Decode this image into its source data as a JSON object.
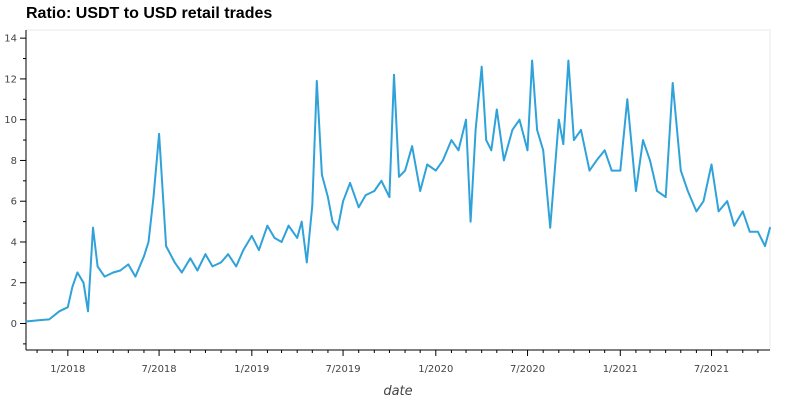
{
  "chart_data": {
    "type": "line",
    "title": "Ratio: USDT to USD retail trades",
    "xlabel": "date",
    "ylabel": "",
    "xlim": [
      "2017-10-10",
      "2021-10-25"
    ],
    "ylim": [
      -1.3,
      14.4
    ],
    "y_ticks": [
      0,
      2,
      4,
      6,
      8,
      10,
      12,
      14
    ],
    "x_ticks": [
      {
        "date": "2018-01-01",
        "label": "1/2018"
      },
      {
        "date": "2018-07-01",
        "label": "7/2018"
      },
      {
        "date": "2019-01-01",
        "label": "1/2019"
      },
      {
        "date": "2019-07-01",
        "label": "7/2019"
      },
      {
        "date": "2020-01-01",
        "label": "1/2020"
      },
      {
        "date": "2020-07-01",
        "label": "7/2020"
      },
      {
        "date": "2021-01-01",
        "label": "1/2021"
      },
      {
        "date": "2021-07-01",
        "label": "7/2021"
      }
    ],
    "grid": false,
    "series": [
      {
        "color": "#30a2da",
        "x": [
          "2017-10-10",
          "2017-11-01",
          "2017-11-25",
          "2017-12-15",
          "2018-01-01",
          "2018-01-10",
          "2018-01-20",
          "2018-02-01",
          "2018-02-10",
          "2018-02-20",
          "2018-03-01",
          "2018-03-15",
          "2018-04-01",
          "2018-04-15",
          "2018-05-01",
          "2018-05-15",
          "2018-06-01",
          "2018-06-10",
          "2018-06-20",
          "2018-07-01",
          "2018-07-15",
          "2018-08-01",
          "2018-08-15",
          "2018-09-01",
          "2018-09-15",
          "2018-10-01",
          "2018-10-15",
          "2018-11-01",
          "2018-11-15",
          "2018-12-01",
          "2018-12-15",
          "2019-01-01",
          "2019-01-15",
          "2019-02-01",
          "2019-02-15",
          "2019-03-01",
          "2019-03-15",
          "2019-04-01",
          "2019-04-10",
          "2019-04-20",
          "2019-05-01",
          "2019-05-10",
          "2019-05-20",
          "2019-06-01",
          "2019-06-10",
          "2019-06-20",
          "2019-07-01",
          "2019-07-15",
          "2019-08-01",
          "2019-08-15",
          "2019-09-01",
          "2019-09-15",
          "2019-10-01",
          "2019-10-10",
          "2019-10-20",
          "2019-11-01",
          "2019-11-15",
          "2019-12-01",
          "2019-12-15",
          "2020-01-01",
          "2020-01-15",
          "2020-02-01",
          "2020-02-15",
          "2020-03-01",
          "2020-03-10",
          "2020-03-20",
          "2020-04-01",
          "2020-04-10",
          "2020-04-20",
          "2020-05-01",
          "2020-05-15",
          "2020-06-01",
          "2020-06-15",
          "2020-07-01",
          "2020-07-10",
          "2020-07-20",
          "2020-08-01",
          "2020-08-15",
          "2020-09-01",
          "2020-09-10",
          "2020-09-20",
          "2020-10-01",
          "2020-10-15",
          "2020-11-01",
          "2020-11-15",
          "2020-12-01",
          "2020-12-15",
          "2021-01-01",
          "2021-01-15",
          "2021-02-01",
          "2021-02-15",
          "2021-03-01",
          "2021-03-15",
          "2021-04-01",
          "2021-04-15",
          "2021-05-01",
          "2021-05-15",
          "2021-06-01",
          "2021-06-15",
          "2021-07-01",
          "2021-07-15",
          "2021-08-01",
          "2021-08-15",
          "2021-09-01",
          "2021-09-15",
          "2021-10-01",
          "2021-10-15",
          "2021-10-25"
        ],
        "values": [
          0.1,
          0.15,
          0.2,
          0.6,
          0.8,
          1.8,
          2.5,
          2.0,
          0.6,
          4.7,
          2.8,
          2.3,
          2.5,
          2.6,
          2.9,
          2.3,
          3.3,
          4.0,
          6.2,
          9.3,
          3.8,
          3.0,
          2.5,
          3.2,
          2.6,
          3.4,
          2.8,
          3.0,
          3.4,
          2.8,
          3.6,
          4.3,
          3.6,
          4.8,
          4.2,
          4.0,
          4.8,
          4.2,
          5.0,
          3.0,
          5.8,
          11.9,
          7.3,
          6.2,
          5.0,
          4.6,
          6.0,
          6.9,
          5.7,
          6.3,
          6.5,
          7.0,
          6.2,
          12.2,
          7.2,
          7.5,
          8.7,
          6.5,
          7.8,
          7.5,
          8.0,
          9.0,
          8.5,
          10.0,
          5.0,
          9.5,
          12.6,
          9.0,
          8.5,
          10.5,
          8.0,
          9.5,
          10.0,
          8.5,
          12.9,
          9.5,
          8.5,
          4.7,
          10.0,
          8.8,
          12.9,
          9.0,
          9.5,
          7.5,
          8.0,
          8.5,
          7.5,
          7.5,
          11.0,
          6.5,
          9.0,
          8.0,
          6.5,
          6.2,
          11.8,
          7.5,
          6.5,
          5.5,
          6.0,
          7.8,
          5.5,
          6.0,
          4.8,
          5.5,
          4.5,
          4.5,
          3.8,
          4.7
        ]
      }
    ]
  }
}
